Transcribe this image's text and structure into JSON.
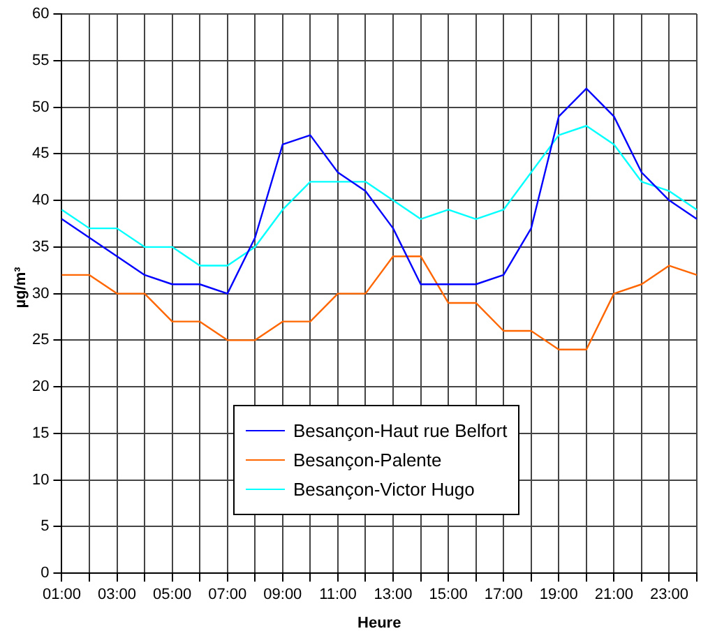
{
  "chart_data": {
    "type": "line",
    "xlabel": "Heure",
    "ylabel": "µg/m³",
    "categories": [
      "01:00",
      null,
      "03:00",
      null,
      "05:00",
      null,
      "07:00",
      null,
      "09:00",
      null,
      "11:00",
      null,
      "13:00",
      null,
      "15:00",
      null,
      "17:00",
      null,
      "19:00",
      null,
      "21:00",
      null,
      "23:00",
      null
    ],
    "series": [
      {
        "name": "Besançon-Haut rue Belfort",
        "color": "#0000ff",
        "values": [
          38,
          36,
          34,
          32,
          31,
          31,
          30,
          36,
          46,
          47,
          43,
          41,
          37,
          31,
          31,
          31,
          32,
          37,
          49,
          52,
          49,
          43,
          40,
          38
        ]
      },
      {
        "name": "Besançon-Palente",
        "color": "#ff6600",
        "values": [
          32,
          32,
          30,
          30,
          27,
          27,
          25,
          25,
          27,
          27,
          30,
          30,
          34,
          34,
          29,
          29,
          26,
          26,
          24,
          24,
          30,
          31,
          33,
          32
        ]
      },
      {
        "name": "Besançon-Victor Hugo",
        "color": "#00ffff",
        "values": [
          39,
          37,
          37,
          35,
          35,
          33,
          33,
          35,
          39,
          42,
          42,
          42,
          40,
          38,
          39,
          38,
          39,
          43,
          47,
          48,
          46,
          42,
          41,
          39
        ]
      }
    ],
    "ylim": [
      0,
      60
    ],
    "yticks": [
      0,
      5,
      10,
      15,
      20,
      25,
      30,
      35,
      40,
      45,
      50,
      55,
      60
    ],
    "grid": true,
    "legend": "center",
    "marker": "none",
    "line_style": "solid"
  }
}
